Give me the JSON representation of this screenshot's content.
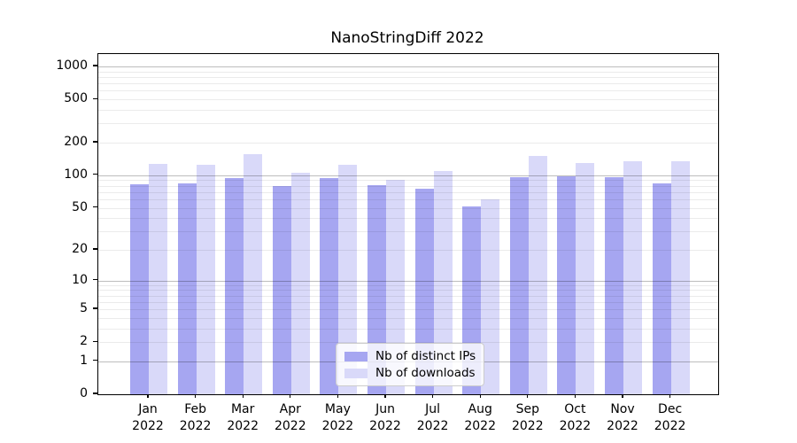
{
  "title": "NanoStringDiff 2022",
  "colors": {
    "ips_bar": "#a6a6f1",
    "downloads_bar": "#d9d9f9",
    "grid_major": "#bdbdbd",
    "grid_minor": "#ebebeb",
    "axis": "#000000",
    "legend_border": "#cccccc"
  },
  "chart_data": {
    "type": "bar",
    "title": "NanoStringDiff 2022",
    "categories": [
      {
        "month": "Jan",
        "year": "2022"
      },
      {
        "month": "Feb",
        "year": "2022"
      },
      {
        "month": "Mar",
        "year": "2022"
      },
      {
        "month": "Apr",
        "year": "2022"
      },
      {
        "month": "May",
        "year": "2022"
      },
      {
        "month": "Jun",
        "year": "2022"
      },
      {
        "month": "Jul",
        "year": "2022"
      },
      {
        "month": "Aug",
        "year": "2022"
      },
      {
        "month": "Sep",
        "year": "2022"
      },
      {
        "month": "Oct",
        "year": "2022"
      },
      {
        "month": "Nov",
        "year": "2022"
      },
      {
        "month": "Dec",
        "year": "2022"
      }
    ],
    "series": [
      {
        "name": "Nb of distinct IPs",
        "values": [
          83,
          84,
          95,
          80,
          95,
          81,
          75,
          51,
          96,
          98,
          97,
          84
        ]
      },
      {
        "name": "Nb of downloads",
        "values": [
          128,
          124,
          158,
          105,
          124,
          91,
          110,
          60,
          151,
          129,
          135,
          136
        ]
      }
    ],
    "y_scale": "log10(value+1)",
    "ylim": [
      0,
      1300
    ],
    "y_ticks": [
      0,
      1,
      2,
      5,
      10,
      20,
      50,
      100,
      200,
      500,
      1000
    ],
    "y_major_gridlines": [
      1,
      10,
      100,
      1000
    ],
    "y_minor_gridlines": [
      2,
      3,
      4,
      5,
      6,
      7,
      8,
      9,
      20,
      30,
      40,
      50,
      60,
      70,
      80,
      90,
      200,
      300,
      400,
      500,
      600,
      700,
      800,
      900
    ],
    "grid": true,
    "legend_position": "lower center"
  }
}
